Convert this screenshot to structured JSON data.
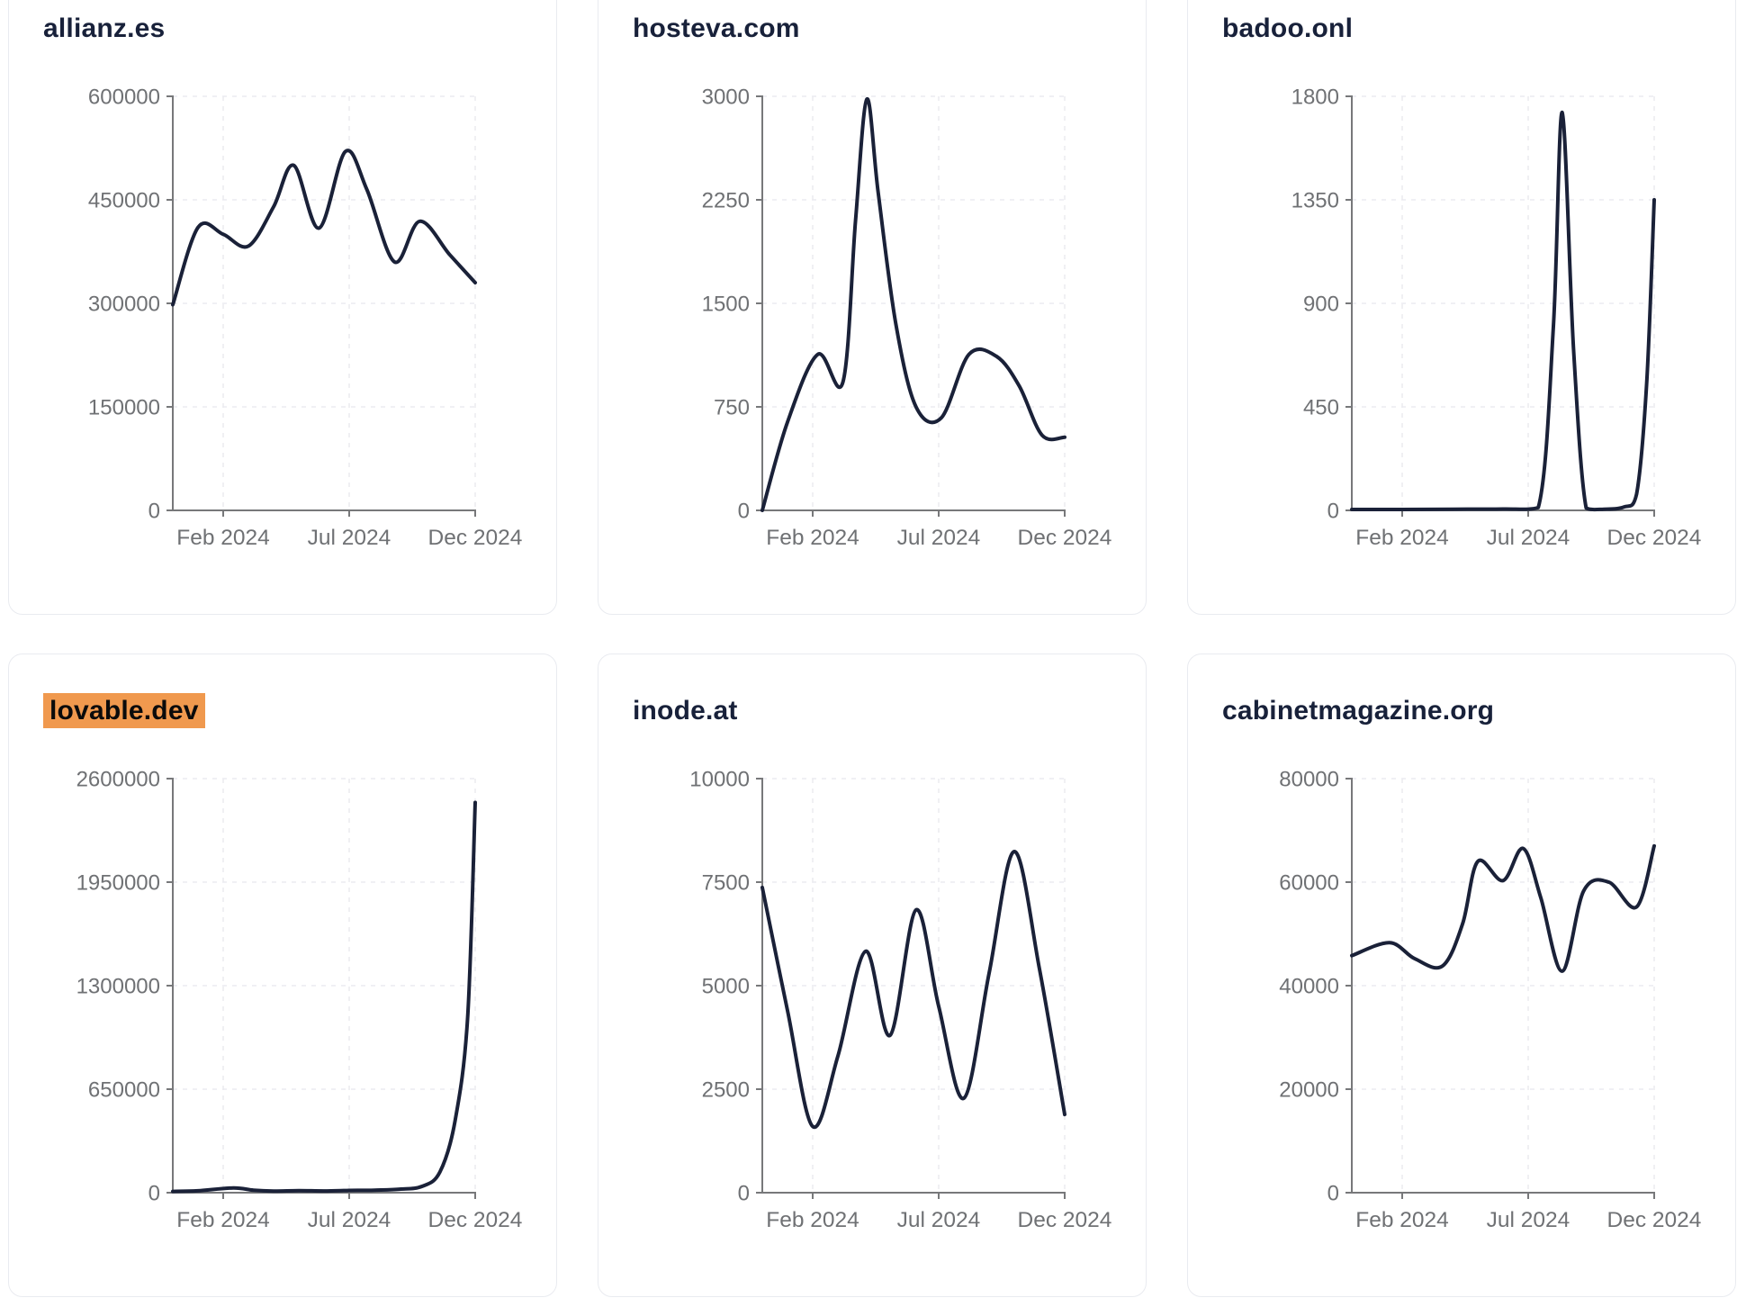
{
  "styles": {
    "page_bg": "#ffffff",
    "card_bg": "#ffffff",
    "card_border": "#e9ebf0",
    "title_color": "#18213a",
    "highlight_color": "#f0994e",
    "highlight_text_color": "#0b0b0b",
    "line_color": "#1a2138",
    "axis_color": "#77787a",
    "tick_label_color": "#6f7174",
    "grid_color": "#ececf0"
  },
  "x_axis_shared": {
    "tick_labels": [
      "Feb 2024",
      "Jul 2024",
      "Dec 2024"
    ],
    "tick_positions": [
      2,
      7,
      12
    ],
    "domain_start": "Dec 2023",
    "domain_end": "Dec 2024",
    "unit": "month index 0-12"
  },
  "chart_data": [
    {
      "type": "line",
      "title": "allianz.es",
      "title_highlight": false,
      "ylim": [
        0,
        600000
      ],
      "y_ticks": [
        600000,
        450000,
        300000,
        150000,
        0
      ],
      "x_tick_labels": [
        "Feb 2024",
        "Jul 2024",
        "Dec 2024"
      ],
      "x_tick_positions": [
        2,
        7,
        12
      ],
      "x": [
        0,
        1,
        2,
        3,
        4,
        4.8,
        5.8,
        6.85,
        7.7,
        8.8,
        9.8,
        11,
        12
      ],
      "y": [
        298000,
        410000,
        400000,
        383000,
        440000,
        500000,
        409000,
        520000,
        465000,
        360000,
        419000,
        370000,
        330000
      ]
    },
    {
      "type": "line",
      "title": "hosteva.com",
      "title_highlight": false,
      "ylim": [
        0,
        3000
      ],
      "y_ticks": [
        3000,
        2250,
        1500,
        750,
        0
      ],
      "x_tick_labels": [
        "Feb 2024",
        "Jul 2024",
        "Dec 2024"
      ],
      "x_tick_positions": [
        2,
        7,
        12
      ],
      "x": [
        0,
        1,
        2.2,
        3.2,
        3.7,
        4.15,
        4.6,
        5.3,
        6.1,
        7.1,
        8.2,
        9.3,
        10.2,
        11.1,
        12
      ],
      "y": [
        0,
        640,
        1130,
        930,
        2100,
        2980,
        2300,
        1350,
        750,
        670,
        1130,
        1115,
        900,
        545,
        530
      ]
    },
    {
      "type": "line",
      "title": "badoo.onl",
      "title_highlight": false,
      "ylim": [
        0,
        1800
      ],
      "y_ticks": [
        1800,
        1350,
        900,
        450,
        0
      ],
      "x_tick_labels": [
        "Feb 2024",
        "Jul 2024",
        "Dec 2024"
      ],
      "x_tick_positions": [
        2,
        7,
        12
      ],
      "x": [
        0,
        2,
        4,
        6,
        7.4,
        8.0,
        8.35,
        8.8,
        9.3,
        10,
        10.8,
        11.3,
        11.7,
        12
      ],
      "y": [
        4,
        4,
        5,
        6,
        12,
        800,
        1730,
        700,
        10,
        5,
        15,
        70,
        550,
        1350
      ]
    },
    {
      "type": "line",
      "title": "lovable.dev",
      "title_highlight": true,
      "ylim": [
        0,
        2600000
      ],
      "y_ticks": [
        2600000,
        1950000,
        1300000,
        650000,
        0
      ],
      "x_tick_labels": [
        "Feb 2024",
        "Jul 2024",
        "Dec 2024"
      ],
      "x_tick_positions": [
        2,
        7,
        12
      ],
      "x": [
        0,
        1,
        2.4,
        3.2,
        4,
        5,
        6,
        7,
        8,
        9,
        9.9,
        10.6,
        11.2,
        11.7,
        12
      ],
      "y": [
        8000,
        12000,
        30000,
        16000,
        10000,
        13000,
        11000,
        14000,
        16000,
        22000,
        40000,
        130000,
        450000,
        1100000,
        2450000
      ]
    },
    {
      "type": "line",
      "title": "inode.at",
      "title_highlight": false,
      "ylim": [
        0,
        10000
      ],
      "y_ticks": [
        10000,
        7500,
        5000,
        2500,
        0
      ],
      "x_tick_labels": [
        "Feb 2024",
        "Jul 2024",
        "Dec 2024"
      ],
      "x_tick_positions": [
        2,
        7,
        12
      ],
      "x": [
        0,
        1,
        2,
        3,
        4.1,
        5.07,
        6.1,
        7,
        8,
        9,
        10,
        11,
        12
      ],
      "y": [
        7370,
        4400,
        1600,
        3300,
        5830,
        3800,
        6830,
        4500,
        2280,
        5300,
        8240,
        5400,
        1890
      ]
    },
    {
      "type": "line",
      "title": "cabinetmagazine.org",
      "title_highlight": false,
      "ylim": [
        0,
        80000
      ],
      "y_ticks": [
        80000,
        60000,
        40000,
        20000,
        0
      ],
      "x_tick_labels": [
        "Feb 2024",
        "Jul 2024",
        "Dec 2024"
      ],
      "x_tick_positions": [
        2,
        7,
        12
      ],
      "x": [
        0,
        1.5,
        2.5,
        3.6,
        4.4,
        5.0,
        6.0,
        6.8,
        7.5,
        8.35,
        9.2,
        10.2,
        11.3,
        12
      ],
      "y": [
        45800,
        48300,
        45200,
        43800,
        52000,
        64000,
        60300,
        66500,
        57000,
        42800,
        58300,
        60000,
        55200,
        67000
      ]
    }
  ]
}
